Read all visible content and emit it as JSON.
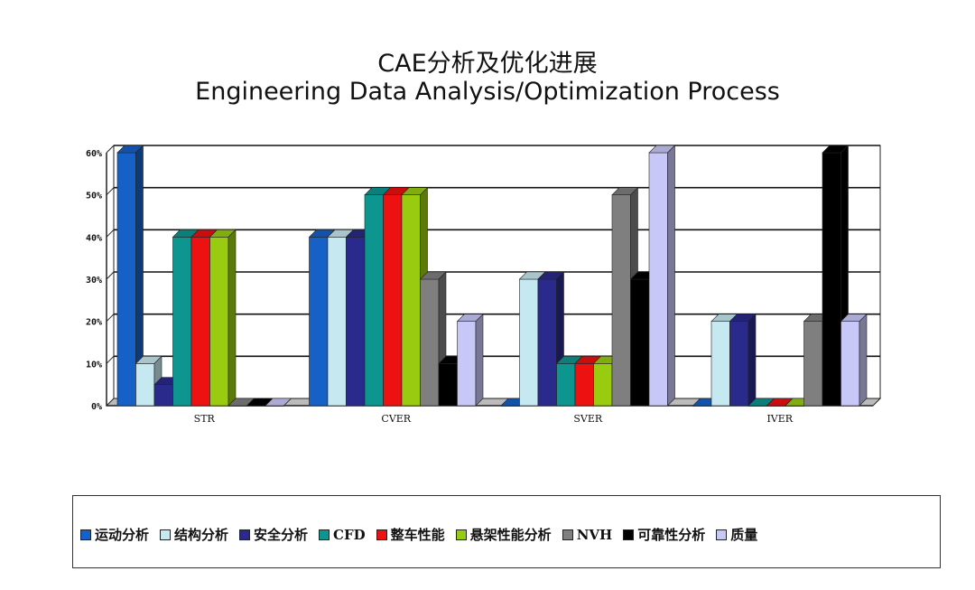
{
  "chart_data": {
    "type": "bar",
    "title": "CAE分析及优化进展",
    "subtitle": "Engineering Data Analysis/Optimization Process",
    "categories": [
      "STR",
      "CVER",
      "SVER",
      "IVER"
    ],
    "y_ticks": [
      "0%",
      "10%",
      "20%",
      "30%",
      "40%",
      "50%",
      "60%"
    ],
    "ylim": [
      0,
      60
    ],
    "grid": true,
    "legend_position": "bottom",
    "series": [
      {
        "name": "运动分析",
        "color": "#1561c8",
        "values": [
          60,
          40,
          0,
          0
        ]
      },
      {
        "name": "结构分析",
        "color": "#c6e8f0",
        "values": [
          10,
          40,
          30,
          20
        ]
      },
      {
        "name": "安全分析",
        "color": "#2a2a8c",
        "values": [
          5,
          40,
          30,
          20
        ]
      },
      {
        "name": "CFD",
        "color": "#0d9690",
        "values": [
          40,
          50,
          10,
          0
        ]
      },
      {
        "name": "整车性能",
        "color": "#ee1111",
        "values": [
          40,
          50,
          10,
          0
        ]
      },
      {
        "name": "悬架性能分析",
        "color": "#99cc11",
        "values": [
          40,
          50,
          10,
          0
        ]
      },
      {
        "name": "NVH",
        "color": "#7f7f7f",
        "values": [
          0,
          30,
          50,
          20
        ]
      },
      {
        "name": "可靠性分析",
        "color": "#000000",
        "values": [
          0,
          10,
          30,
          60
        ]
      },
      {
        "name": "质量",
        "color": "#c8c8f8",
        "values": [
          0,
          20,
          60,
          20
        ]
      }
    ]
  }
}
